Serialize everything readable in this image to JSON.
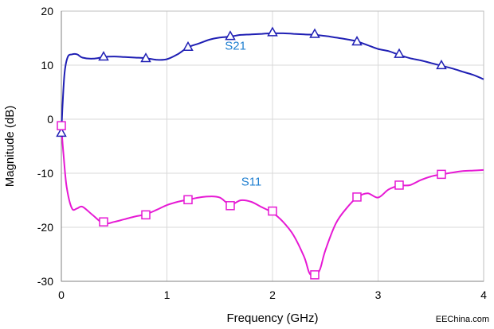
{
  "chart_data": {
    "type": "line",
    "title": "",
    "xlabel": "Frequency (GHz)",
    "ylabel": "Magnitude (dB)",
    "xlim": [
      0,
      4
    ],
    "ylim": [
      -30,
      20
    ],
    "xticks": [
      "0",
      "1",
      "2",
      "3",
      "4"
    ],
    "yticks": [
      "20",
      "10",
      "0",
      "-10",
      "-20",
      "-30"
    ],
    "grid": true,
    "legend": "none",
    "series": [
      {
        "name": "S21",
        "color": "#1f1fb4",
        "marker": "triangle",
        "x": [
          0.0,
          0.01,
          0.03,
          0.06,
          0.1,
          0.15,
          0.2,
          0.3,
          0.4,
          0.5,
          0.6,
          0.7,
          0.8,
          0.9,
          1.0,
          1.1,
          1.2,
          1.3,
          1.4,
          1.5,
          1.6,
          1.7,
          1.8,
          1.9,
          2.0,
          2.1,
          2.2,
          2.3,
          2.4,
          2.5,
          2.6,
          2.7,
          2.8,
          2.9,
          3.0,
          3.1,
          3.2,
          3.3,
          3.4,
          3.5,
          3.6,
          3.7,
          3.8,
          3.9,
          4.0
        ],
        "y": [
          -2.5,
          2,
          8.5,
          11.5,
          12,
          12,
          11.4,
          11.2,
          11.5,
          11.6,
          11.5,
          11.4,
          11.3,
          11.0,
          11.1,
          12.0,
          13.3,
          14.0,
          14.7,
          15.1,
          15.3,
          15.6,
          15.7,
          15.8,
          15.9,
          15.9,
          15.8,
          15.7,
          15.6,
          15.4,
          15.1,
          14.8,
          14.4,
          13.7,
          13.0,
          12.6,
          11.9,
          11.3,
          10.9,
          10.4,
          9.9,
          9.4,
          8.8,
          8.2,
          7.4
        ],
        "markers_x": [
          0.0,
          0.4,
          0.8,
          1.2,
          1.6,
          2.0,
          2.4,
          2.8,
          3.2,
          3.6
        ],
        "markers_y": [
          -2.5,
          11.6,
          11.3,
          13.4,
          15.4,
          16.1,
          15.8,
          14.4,
          12.1,
          10.0
        ]
      },
      {
        "name": "S11",
        "color": "#e619d4",
        "marker": "square",
        "x": [
          0.0,
          0.02,
          0.05,
          0.1,
          0.15,
          0.2,
          0.3,
          0.4,
          0.5,
          0.6,
          0.7,
          0.8,
          0.9,
          1.0,
          1.1,
          1.2,
          1.3,
          1.4,
          1.5,
          1.6,
          1.7,
          1.8,
          1.9,
          2.0,
          2.1,
          2.2,
          2.3,
          2.35,
          2.4,
          2.45,
          2.5,
          2.6,
          2.7,
          2.8,
          2.9,
          3.0,
          3.1,
          3.2,
          3.3,
          3.4,
          3.5,
          3.6,
          3.7,
          3.8,
          3.9,
          4.0
        ],
        "y": [
          -1.2,
          -6.5,
          -12.5,
          -16.5,
          -16.5,
          -16.2,
          -17.8,
          -19.3,
          -19.0,
          -18.5,
          -18.0,
          -17.6,
          -16.8,
          -15.9,
          -15.3,
          -14.9,
          -14.5,
          -14.3,
          -14.5,
          -15.8,
          -15.0,
          -15.3,
          -16.3,
          -17.3,
          -19.0,
          -21.5,
          -25.5,
          -28.5,
          -29.0,
          -27.8,
          -24.3,
          -19.3,
          -16.5,
          -14.5,
          -13.7,
          -14.5,
          -13.0,
          -12.3,
          -12.2,
          -11.3,
          -10.6,
          -10.2,
          -9.9,
          -9.6,
          -9.5,
          -9.4
        ],
        "markers_x": [
          0.0,
          0.4,
          0.8,
          1.2,
          1.6,
          2.0,
          2.4,
          2.8,
          3.2,
          3.6
        ],
        "markers_y": [
          -1.2,
          -19.0,
          -17.7,
          -14.9,
          -16.0,
          -17.0,
          -28.8,
          -14.4,
          -12.2,
          -10.2
        ]
      }
    ],
    "annotations": [
      {
        "text": "S21",
        "x": 1.65,
        "y": 12.9,
        "color": "#1f7fd0"
      },
      {
        "text": "S11",
        "x": 1.8,
        "y": -12.3,
        "color": "#1f7fd0"
      }
    ]
  },
  "watermark": "EEChina.com"
}
